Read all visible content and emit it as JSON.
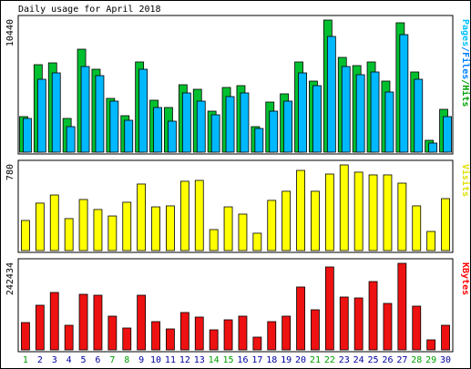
{
  "title": "Daily usage for April 2018",
  "chart_data": [
    {
      "type": "bar",
      "label_parts": [
        {
          "text": "Pages",
          "color": "#00c0ff"
        },
        {
          "text": "/",
          "color": "#0080ff"
        },
        {
          "text": "Files",
          "color": "#0080ff"
        },
        {
          "text": "/",
          "color": "#00a000"
        },
        {
          "text": "Hits",
          "color": "#00a000"
        }
      ],
      "series": [
        {
          "name": "Hits",
          "color": "#00c030",
          "values": [
            2808,
            6912,
            7056,
            2664,
            8136,
            6552,
            4248,
            2880,
            7128,
            4104,
            3528,
            5328,
            4968,
            3240,
            5112,
            5256,
            2016,
            3960,
            4608,
            7128,
            5616,
            10440,
            7488,
            6840,
            7128,
            5616,
            10224,
            6336,
            936,
            3384
          ]
        },
        {
          "name": "Files",
          "color": "#00b8ff",
          "values": [
            2664,
            5760,
            6264,
            2016,
            6768,
            6048,
            4032,
            2520,
            6552,
            3528,
            2448,
            4680,
            4032,
            2952,
            4392,
            4680,
            1872,
            3240,
            4032,
            6264,
            5256,
            9144,
            6768,
            6120,
            6336,
            4752,
            9288,
            5760,
            720,
            2808
          ]
        }
      ],
      "ylim": [
        0,
        10440
      ],
      "yticks": [
        10440
      ]
    },
    {
      "type": "bar",
      "label_parts": [
        {
          "text": "Visits",
          "color": "#e0e000"
        }
      ],
      "series": [
        {
          "name": "Visits",
          "color": "#ffff00",
          "values": [
            274,
            432,
            506,
            291,
            465,
            374,
            315,
            440,
            606,
            398,
            407,
            631,
            639,
            191,
            398,
            332,
            158,
            457,
            540,
            730,
            540,
            697,
            780,
            714,
            689,
            689,
            614,
            407,
            174,
            473
          ]
        }
      ],
      "ylim": [
        0,
        780
      ],
      "yticks": [
        780
      ]
    },
    {
      "type": "bar",
      "label_parts": [
        {
          "text": "KBytes",
          "color": "#ff0000"
        }
      ],
      "series": [
        {
          "name": "KBytes",
          "color": "#ee1111",
          "values": [
            76560,
            125048,
            160776,
            68904,
            155672,
            153120,
            94424,
            61248,
            153120,
            79112,
            58696,
            104632,
            91872,
            56144,
            84216,
            94424,
            35728,
            79112,
            94424,
            176088,
            112288,
            232232,
            148016,
            145464,
            191400,
            130152,
            242434,
            122496,
            28072,
            68904
          ]
        }
      ],
      "ylim": [
        0,
        242434
      ],
      "yticks": [
        242434
      ],
      "categories": [
        "1",
        "2",
        "3",
        "4",
        "5",
        "6",
        "7",
        "8",
        "9",
        "10",
        "11",
        "12",
        "13",
        "14",
        "15",
        "16",
        "17",
        "18",
        "19",
        "20",
        "21",
        "22",
        "23",
        "24",
        "25",
        "26",
        "27",
        "28",
        "29",
        "30"
      ],
      "category_colors": [
        "#00a000",
        "#0000a0",
        "#0000a0",
        "#0000a0",
        "#0000a0",
        "#0000a0",
        "#00a000",
        "#00a000",
        "#0000a0",
        "#0000a0",
        "#0000a0",
        "#0000a0",
        "#0000a0",
        "#00a000",
        "#00a000",
        "#0000a0",
        "#0000a0",
        "#0000a0",
        "#0000a0",
        "#0000a0",
        "#00a000",
        "#00a000",
        "#0000a0",
        "#0000a0",
        "#0000a0",
        "#0000a0",
        "#0000a0",
        "#00a000",
        "#00a000",
        "#0000a0"
      ]
    }
  ]
}
